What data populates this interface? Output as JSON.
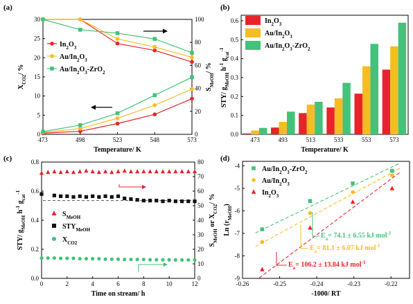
{
  "colors": {
    "red": "#e8232a",
    "orange": "#f7bc23",
    "green": "#44c27a",
    "black": "#111111"
  },
  "chart_data": [
    {
      "panel": "(a)",
      "type": "line",
      "x": [
        473,
        498,
        523,
        548,
        573
      ],
      "xlabel": "Temperature/ K",
      "xlim": [
        473,
        573
      ],
      "ylabel_left": "X_CO2/ %",
      "ylabel_right": "S_MeOH/ %",
      "ylim_left": [
        0,
        30
      ],
      "ylim_right": [
        0,
        100
      ],
      "left_ticks": [
        "0",
        "5",
        "10",
        "15",
        "20",
        "25",
        "30"
      ],
      "right_ticks": [
        "0",
        "20",
        "40",
        "60",
        "80",
        "100"
      ],
      "series": [
        {
          "name": "In2O3",
          "color": "red",
          "marker": "circle",
          "conversion": [
            0.3,
            0.8,
            2.8,
            5.2,
            9.3
          ],
          "selectivity": [
            100,
            100,
            79,
            73,
            63
          ]
        },
        {
          "name": "Au/In2O3",
          "color": "orange",
          "marker": "circle",
          "conversion": [
            0.5,
            1.5,
            4.2,
            7.6,
            11.8
          ],
          "selectivity": [
            100,
            100,
            83,
            76,
            67
          ]
        },
        {
          "name": "Au/In2O3-ZrO2",
          "color": "green",
          "marker": "square",
          "conversion": [
            0.7,
            2.4,
            5.5,
            10.2,
            14.9
          ],
          "selectivity": [
            100,
            91,
            88,
            83,
            71
          ]
        }
      ]
    },
    {
      "panel": "(b)",
      "type": "bar",
      "categories": [
        "473",
        "493",
        "513",
        "533",
        "553",
        "573"
      ],
      "xlabel": "Temperature/ K",
      "ylabel": "STY/ g_MeOH h^-1 g_cat^-1",
      "ylim": [
        0,
        0.6
      ],
      "yticks": [
        "0.0",
        "0.1",
        "0.2",
        "0.3",
        "0.4",
        "0.5",
        "0.6"
      ],
      "series": [
        {
          "name": "In2O3",
          "color": "red",
          "values": [
            0.005,
            0.036,
            0.112,
            0.142,
            0.215,
            0.342
          ]
        },
        {
          "name": "Au/In2O3",
          "color": "orange",
          "values": [
            0.02,
            0.066,
            0.157,
            0.19,
            0.36,
            0.465
          ]
        },
        {
          "name": "Au/In2O3-ZrO2",
          "color": "green",
          "values": [
            0.034,
            0.12,
            0.172,
            0.272,
            0.478,
            0.59
          ]
        }
      ]
    },
    {
      "panel": "(c)",
      "type": "scatter",
      "xlabel": "Time on stream/ h",
      "xlim": [
        0,
        12
      ],
      "ylabel_left": "STY/ g_MeOH h^-1 g_cat^-1",
      "ylabel_right": "S_MeOH or X_CO2/ %",
      "ylim_left": [
        0,
        0.8
      ],
      "ylim_right": [
        0,
        80
      ],
      "xticks": [
        "0",
        "2",
        "4",
        "6",
        "8",
        "10",
        "12"
      ],
      "left_ticks": [
        "0.0",
        "0.2",
        "0.4",
        "0.6",
        "0.8"
      ],
      "right_ticks": [
        "0",
        "10",
        "20",
        "30",
        "40",
        "50",
        "60",
        "70",
        "80"
      ],
      "series": [
        {
          "name": "S_MeOH",
          "color": "red",
          "marker": "triangle",
          "axis": "right",
          "x": [
            0,
            0.5,
            1,
            1.5,
            2,
            2.5,
            3,
            3.5,
            4,
            4.5,
            5,
            5.5,
            6,
            6.5,
            7,
            7.5,
            8,
            8.5,
            9,
            9.5,
            10,
            10.5,
            11,
            11.5,
            12
          ],
          "values": [
            72.5,
            73,
            73.5,
            73,
            73.5,
            73,
            73.5,
            74,
            73.5,
            73,
            73.5,
            73,
            73.5,
            74,
            73.5,
            73.5,
            73.5,
            73.5,
            73.5,
            73.5,
            73.5,
            73.5,
            73.5,
            73.5,
            73.5
          ]
        },
        {
          "name": "STY_MeOH",
          "color": "black",
          "marker": "square",
          "axis": "left",
          "x": [
            0,
            1,
            1.5,
            2,
            2.5,
            3,
            3.5,
            4,
            4.5,
            5,
            5.5,
            6,
            6.5,
            7,
            7.5,
            8,
            8.5,
            9,
            9.5,
            10,
            10.5,
            11,
            11.5,
            12
          ],
          "values": [
            0.58,
            0.57,
            0.565,
            0.565,
            0.56,
            0.565,
            0.56,
            0.565,
            0.56,
            0.565,
            0.56,
            0.565,
            0.55,
            0.545,
            0.54,
            0.535,
            0.535,
            0.535,
            0.53,
            0.535,
            0.53,
            0.53,
            0.53,
            0.53
          ]
        },
        {
          "name": "X_CO2",
          "color": "green",
          "marker": "circle",
          "axis": "right",
          "x": [
            0,
            0.5,
            1,
            1.5,
            2,
            2.5,
            3,
            3.5,
            4,
            4.5,
            5,
            5.5,
            6,
            6.5,
            7,
            7.5,
            8,
            8.5,
            9,
            9.5,
            10,
            10.5,
            11,
            11.5,
            12
          ],
          "values": [
            14,
            14,
            14,
            13.8,
            13.8,
            13.8,
            13.5,
            13.5,
            13.5,
            13.5,
            13.2,
            13.2,
            13.2,
            13,
            13,
            13,
            13,
            12.8,
            12.8,
            12.8,
            12.8,
            12.7,
            12.7,
            12.7,
            12.7
          ]
        }
      ],
      "reference_line": 0.535
    },
    {
      "panel": "(d)",
      "type": "scatter",
      "xlabel": "-1000/ RT",
      "xlim": [
        -0.26,
        -0.215
      ],
      "ylim": [
        -9,
        -3.8
      ],
      "xticks": [
        "-0.26",
        "-0.25",
        "-0.24",
        "-0.23",
        "-0.22"
      ],
      "yticks": [
        "-9",
        "-8",
        "-7",
        "-6",
        "-5",
        "-4"
      ],
      "ylabel": "Ln (r_MeOH)",
      "series": [
        {
          "name": "Au/In2O3-ZrO2",
          "color": "green",
          "marker": "square",
          "x": [
            -0.2547,
            -0.2418,
            -0.2303,
            -0.2197
          ],
          "y": [
            -6.82,
            -5.56,
            -4.78,
            -4.22
          ]
        },
        {
          "name": "Au/In2O3",
          "color": "orange",
          "marker": "circle",
          "x": [
            -0.2547,
            -0.2418,
            -0.2303,
            -0.2197
          ],
          "y": [
            -7.38,
            -6.1,
            -5.17,
            -4.42
          ]
        },
        {
          "name": "In2O3",
          "color": "red",
          "marker": "triangle",
          "x": [
            -0.2547,
            -0.2418,
            -0.2303,
            -0.2197
          ],
          "y": [
            -8.6,
            -6.75,
            -5.6,
            -5.0
          ]
        }
      ],
      "fit_lines": [
        {
          "color": "green",
          "x": [
            -0.2565,
            -0.2175
          ],
          "y": [
            -6.98,
            -3.87
          ]
        },
        {
          "color": "orange",
          "x": [
            -0.2565,
            -0.2175
          ],
          "y": [
            -7.58,
            -4.1
          ]
        },
        {
          "color": "red",
          "x": [
            -0.2555,
            -0.2175
          ],
          "y": [
            -8.98,
            -4.28
          ]
        }
      ],
      "annotations": [
        {
          "color": "green",
          "text": "= 74.1 ± 6.55 kJ mol"
        },
        {
          "color": "orange",
          "text": "= 81.1 ± 6.07 kJ mol"
        },
        {
          "color": "red",
          "text": "= 106.2 ± 13.84 kJ mol"
        }
      ]
    }
  ],
  "labels": {
    "a_title": "(a)",
    "b_title": "(b)",
    "c_title": "(c)",
    "d_title": "(d)",
    "a_xlabel": "Temperature/ K",
    "b_xlabel": "Temperature/ K",
    "c_xlabel": "Time on stream/ h",
    "d_xlabel": "-1000/ RT",
    "d_ylabel_main": "Ln (r",
    "d_ylabel_sub": "MeOH",
    "d_ylabel_close": ")",
    "ea_sym": "E",
    "ea_sub": "a",
    "ea_unit_sup": "-1"
  }
}
